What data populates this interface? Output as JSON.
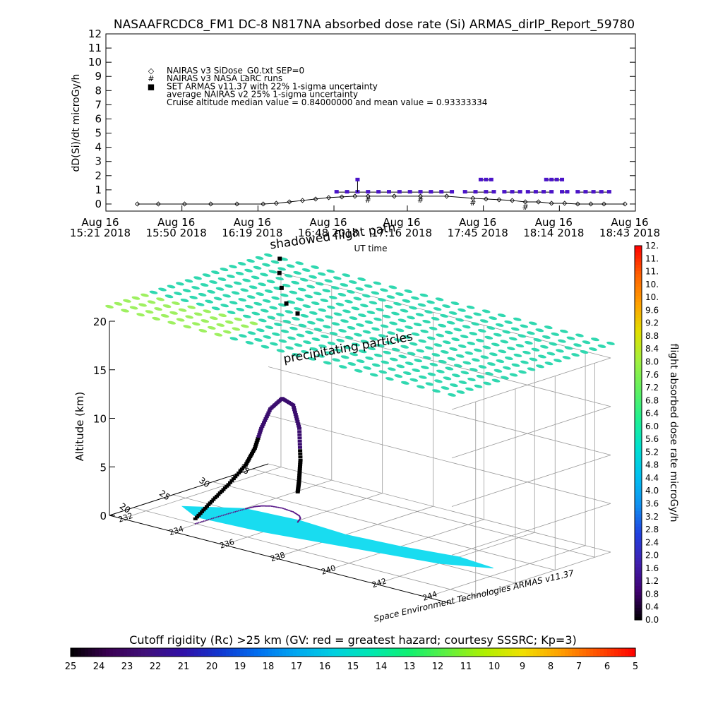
{
  "header": {
    "title": "NASAAFRCDC8_FM1 DC-8   N817NA absorbed dose rate (Si) ARMAS_dirIP_Report_59780"
  },
  "chart_data": [
    {
      "type": "line",
      "title": "NASAAFRCDC8_FM1 DC-8   N817NA absorbed dose rate (Si) ARMAS_dirIP_Report_59780",
      "xlabel": "UT time",
      "ylabel": "dD(Si)/dt microGy/h",
      "ylim": [
        -0.5,
        12
      ],
      "yticks": [
        "0",
        "1",
        "2",
        "3",
        "4",
        "5",
        "6",
        "7",
        "8",
        "9",
        "10",
        "11",
        "12"
      ],
      "xlim_minutes": [
        0,
        202
      ],
      "xticks": [
        {
          "minute": 0,
          "line1": "Aug 16",
          "line2": "15:21 2018"
        },
        {
          "minute": 29,
          "line1": "Aug 16",
          "line2": "15:50 2018"
        },
        {
          "minute": 58,
          "line1": "Aug 16",
          "line2": "16:19 2018"
        },
        {
          "minute": 87,
          "line1": "Aug 16",
          "line2": "16:48 2018"
        },
        {
          "minute": 115,
          "line1": "Aug 16",
          "line2": "17:16 2018"
        },
        {
          "minute": 144,
          "line1": "Aug 16",
          "line2": "17:45 2018"
        },
        {
          "minute": 173,
          "line1": "Aug 16",
          "line2": "18:14 2018"
        },
        {
          "minute": 202,
          "line1": "Aug 16",
          "line2": "18:43 2018"
        }
      ],
      "legend": {
        "placement": "top-left",
        "entries": [
          {
            "symbol": "◇",
            "text": "NAIRAS v3 SiDose_G0.txt SEP=0"
          },
          {
            "symbol": "#",
            "text": "NAIRAS v3 NASA LaRC runs"
          },
          {
            "symbol": "■",
            "text": "SET ARMAS v11.37 with 22% 1-sigma uncertainty"
          },
          {
            "symbol": "",
            "text": "average NAIRAS v2 25% 1-sigma uncertainty"
          },
          {
            "symbol": "",
            "text": "Cruise altitude median value = 0.84000000 and mean value = 0.93333334"
          }
        ]
      },
      "series": [
        {
          "name": "NAIRAS v3 SiDose_G0.txt SEP=0",
          "color": "#000000",
          "marker": "diamond",
          "points": [
            [
              12,
              0
            ],
            [
              20,
              0
            ],
            [
              30,
              0
            ],
            [
              40,
              0
            ],
            [
              50,
              0
            ],
            [
              60,
              0
            ],
            [
              65,
              0.05
            ],
            [
              70,
              0.15
            ],
            [
              75,
              0.25
            ],
            [
              80,
              0.35
            ],
            [
              85,
              0.45
            ],
            [
              90,
              0.5
            ],
            [
              95,
              0.55
            ],
            [
              100,
              0.55
            ],
            [
              110,
              0.55
            ],
            [
              120,
              0.55
            ],
            [
              130,
              0.55
            ],
            [
              140,
              0.4
            ],
            [
              145,
              0.35
            ],
            [
              150,
              0.3
            ],
            [
              155,
              0.25
            ],
            [
              160,
              0.15
            ],
            [
              165,
              0.15
            ],
            [
              170,
              0.05
            ],
            [
              175,
              0.05
            ],
            [
              180,
              0
            ],
            [
              185,
              0
            ],
            [
              190,
              0
            ],
            [
              198,
              0
            ]
          ]
        },
        {
          "name": "SET ARMAS v11.37 with 22% 1-sigma uncertainty",
          "color": "#4b14c8",
          "marker": "square",
          "segments": [
            [
              [
                88,
                0.84
              ],
              [
                92,
                0.84
              ],
              [
                96,
                0.84
              ],
              [
                100,
                0.84
              ],
              [
                104,
                0.84
              ],
              [
                108,
                0.84
              ],
              [
                112,
                0.84
              ],
              [
                116,
                0.84
              ],
              [
                120,
                0.84
              ],
              [
                124,
                0.84
              ],
              [
                128,
                0.84
              ],
              [
                132,
                0.84
              ]
            ],
            [
              [
                137,
                0.84
              ],
              [
                141,
                0.84
              ],
              [
                145,
                0.84
              ],
              [
                148,
                0.84
              ]
            ],
            [
              [
                143,
                1.7
              ],
              [
                145,
                1.7
              ],
              [
                147,
                1.7
              ]
            ],
            [
              [
                152,
                0.84
              ],
              [
                155,
                0.84
              ],
              [
                158,
                0.84
              ]
            ],
            [
              [
                161,
                0.84
              ],
              [
                164,
                0.84
              ],
              [
                167,
                0.84
              ],
              [
                170,
                0.84
              ]
            ],
            [
              [
                168,
                1.7
              ],
              [
                170,
                1.7
              ],
              [
                172,
                1.7
              ],
              [
                174,
                1.7
              ]
            ],
            [
              [
                174,
                0.84
              ],
              [
                176,
                0.84
              ]
            ],
            [
              [
                180,
                0.84
              ],
              [
                183,
                0.84
              ],
              [
                186,
                0.84
              ],
              [
                189,
                0.84
              ],
              [
                192,
                0.84
              ]
            ]
          ],
          "spikes": [
            [
              96,
              1.7
            ]
          ]
        },
        {
          "name": "NAIRAS v3 NASA LaRC runs",
          "color": "#000000",
          "marker": "hash",
          "points": [
            [
              100,
              0.3
            ],
            [
              120,
              0.3
            ],
            [
              140,
              0.1
            ],
            [
              160,
              -0.2
            ]
          ]
        }
      ]
    },
    {
      "type": "scatter",
      "title": "",
      "annotations": [
        "shadowed flight path",
        "precipitating particles",
        "Space Environment Technologies ARMAS v11.37",
        "UT time"
      ],
      "zlabel": "Altitude (km)",
      "zticks": [
        "0",
        "5",
        "10",
        "15",
        "20"
      ],
      "xticks": [
        "232",
        "234",
        "236",
        "238",
        "240",
        "242",
        "244"
      ],
      "yticks": [
        "20",
        "25",
        "30",
        "35"
      ],
      "colorbar": {
        "label": "flight absorbed dose rate microGy/h",
        "range": [
          0.0,
          12.0
        ],
        "ticks": [
          "0.0",
          "0.4",
          "0.8",
          "1.2",
          "1.6",
          "2.0",
          "2.4",
          "2.8",
          "3.2",
          "3.6",
          "4.0",
          "4.4",
          "4.8",
          "5.2",
          "5.6",
          "6.0",
          "6.4",
          "6.8",
          "7.2",
          "7.6",
          "8.0",
          "8.4",
          "8.8",
          "9.2",
          "9.6",
          "10.",
          "10.",
          "11.",
          "11.",
          "12."
        ],
        "colors": [
          "#000000",
          "#400070",
          "#4020b0",
          "#2040e0",
          "#1090f0",
          "#00c0f0",
          "#00e0d0",
          "#20f090",
          "#60f060",
          "#a0f040",
          "#e0e000",
          "#ffa000",
          "#ff6000",
          "#ff0000"
        ]
      },
      "flight_path": [
        {
          "lon": 233.95,
          "lat": 20.0,
          "alt_km": 0.5
        },
        {
          "lon": 233.97,
          "lat": 22.0,
          "alt_km": 1.8
        },
        {
          "lon": 234.0,
          "lat": 24.0,
          "alt_km": 3.0
        },
        {
          "lon": 234.05,
          "lat": 26.0,
          "alt_km": 4.5
        },
        {
          "lon": 234.1,
          "lat": 27.0,
          "alt_km": 6.0
        },
        {
          "lon": 234.2,
          "lat": 27.5,
          "alt_km": 8.0
        },
        {
          "lon": 234.4,
          "lat": 28.0,
          "alt_km": 10.0
        },
        {
          "lon": 234.8,
          "lat": 28.2,
          "alt_km": 11.3
        },
        {
          "lon": 235.3,
          "lat": 28.0,
          "alt_km": 11.0
        },
        {
          "lon": 235.7,
          "lat": 27.5,
          "alt_km": 9.0
        },
        {
          "lon": 235.9,
          "lat": 27.0,
          "alt_km": 6.0
        },
        {
          "lon": 236.0,
          "lat": 26.5,
          "alt_km": 4.0
        },
        {
          "lon": 236.1,
          "lat": 26.0,
          "alt_km": 3.0
        }
      ]
    },
    {
      "type": "heatmap",
      "title": "Cutoff rigidity (Rc) >25 km (GV: red = greatest hazard; courtesy SSSRC; Kp=3)",
      "ticks": [
        "25",
        "24",
        "23",
        "22",
        "21",
        "20",
        "19",
        "18",
        "17",
        "16",
        "15",
        "14",
        "13",
        "12",
        "11",
        "10",
        "9",
        "8",
        "7",
        "6",
        "5"
      ],
      "colors": [
        "#000000",
        "#3a0052",
        "#40107a",
        "#3010a8",
        "#1038d0",
        "#0070f0",
        "#00a8f0",
        "#00d0e0",
        "#00e8b0",
        "#10f070",
        "#60f040",
        "#b0f000",
        "#f0e000",
        "#ffa000",
        "#ff5000",
        "#ff0000"
      ],
      "surface_color": "#30d8b0",
      "surface_color_high": "#9ef060"
    }
  ]
}
